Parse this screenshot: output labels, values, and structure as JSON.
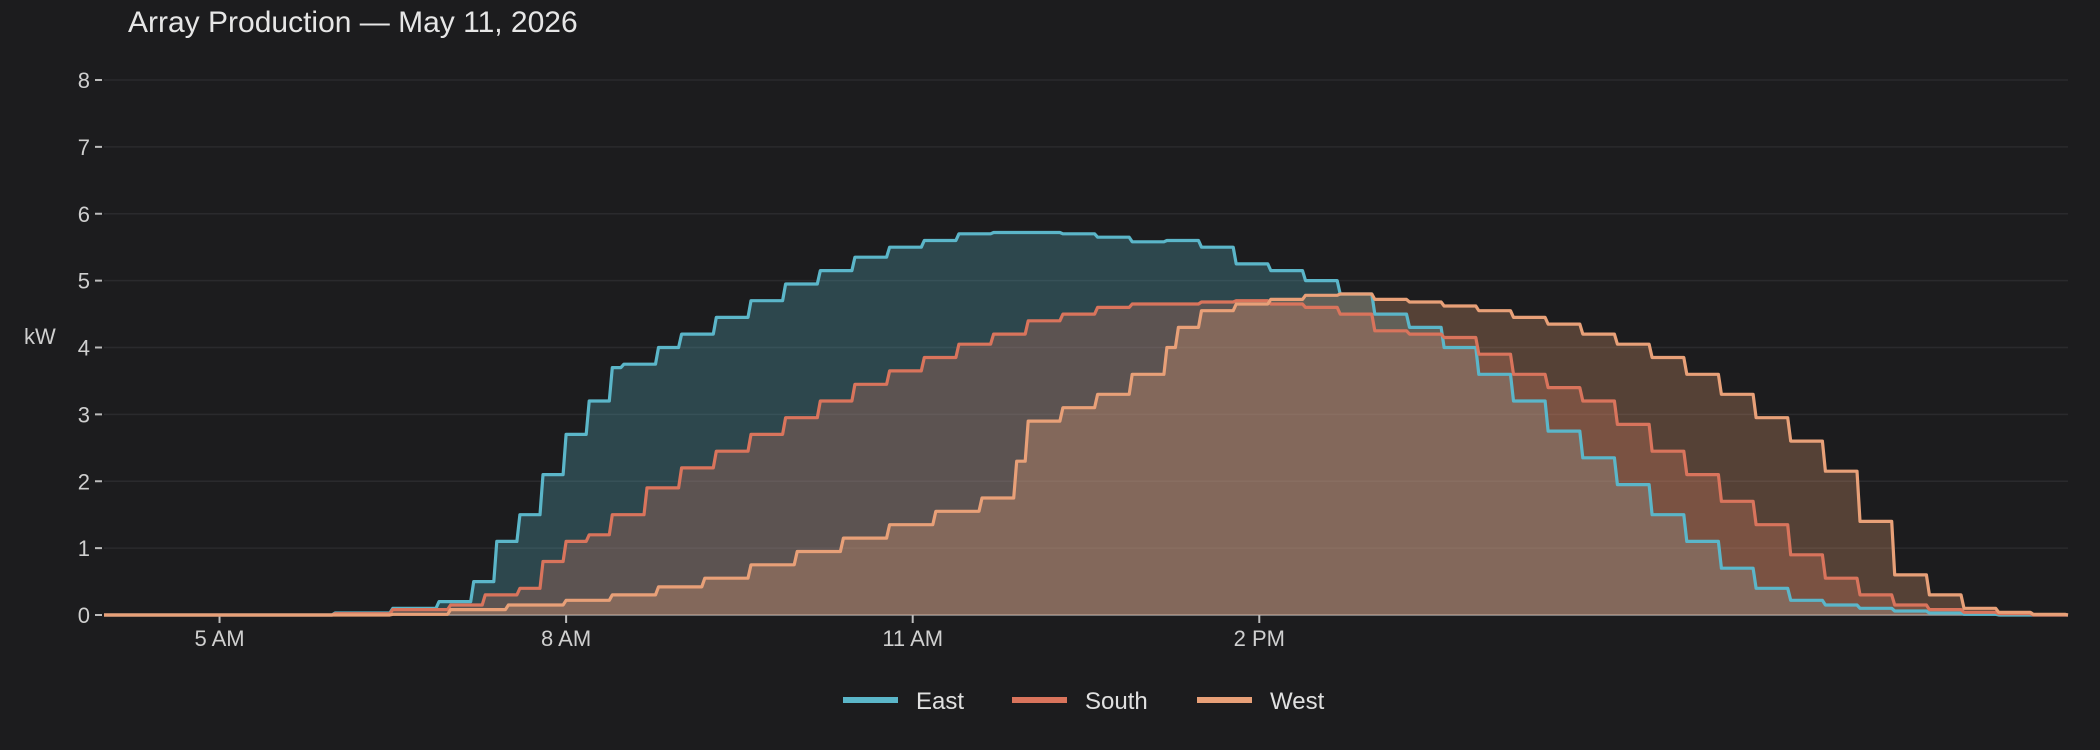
{
  "chart_data": {
    "type": "area",
    "title": "Array Production — May 11, 2026",
    "ylabel": "kW",
    "xlabel": "",
    "x_unit": "hour of day",
    "xlim": [
      4,
      21
    ],
    "ylim": [
      0,
      8
    ],
    "y_ticks": [
      0,
      1,
      2,
      3,
      4,
      5,
      6,
      7,
      8
    ],
    "x_ticks": [
      {
        "value": 5,
        "label": "5 AM"
      },
      {
        "value": 8,
        "label": "8 AM"
      },
      {
        "value": 11,
        "label": "11 AM"
      },
      {
        "value": 14,
        "label": "2 PM"
      }
    ],
    "grid": "horizontal",
    "legend_position": "bottom-center",
    "series": [
      {
        "name": "East",
        "color": "#5bb6c9",
        "fill": "#5bb6c9",
        "x": [
          4,
          6,
          6.5,
          6.9,
          7.2,
          7.4,
          7.6,
          7.8,
          8.0,
          8.2,
          8.4,
          8.5,
          8.8,
          9.0,
          9.3,
          9.6,
          9.9,
          10.2,
          10.5,
          10.8,
          11.1,
          11.4,
          11.7,
          12.0,
          12.3,
          12.6,
          12.9,
          13.2,
          13.5,
          13.8,
          14.1,
          14.4,
          14.7,
          15.0,
          15.3,
          15.6,
          15.9,
          16.2,
          16.5,
          16.8,
          17.1,
          17.4,
          17.7,
          18.0,
          18.3,
          18.6,
          18.9,
          19.2,
          19.5,
          19.8,
          20.1,
          20.4,
          20.7,
          21.0
        ],
        "values": [
          0,
          0.03,
          0.1,
          0.2,
          0.5,
          1.1,
          1.5,
          2.1,
          2.7,
          3.2,
          3.7,
          3.75,
          4.0,
          4.2,
          4.45,
          4.7,
          4.95,
          5.15,
          5.35,
          5.5,
          5.6,
          5.7,
          5.72,
          5.72,
          5.7,
          5.65,
          5.58,
          5.6,
          5.5,
          5.25,
          5.15,
          5.0,
          4.8,
          4.5,
          4.3,
          4.0,
          3.6,
          3.2,
          2.75,
          2.35,
          1.95,
          1.5,
          1.1,
          0.7,
          0.4,
          0.22,
          0.15,
          0.1,
          0.06,
          0.03,
          0.01,
          0.0,
          0.0,
          0.0
        ]
      },
      {
        "name": "South",
        "color": "#d9745c",
        "fill": "#d9745c",
        "x": [
          4,
          6,
          6.5,
          7.0,
          7.3,
          7.6,
          7.8,
          8.0,
          8.2,
          8.4,
          8.7,
          9.0,
          9.3,
          9.6,
          9.9,
          10.2,
          10.5,
          10.8,
          11.1,
          11.4,
          11.7,
          12.0,
          12.3,
          12.6,
          12.9,
          13.2,
          13.5,
          13.8,
          14.1,
          14.4,
          14.7,
          15.0,
          15.3,
          15.6,
          15.9,
          16.2,
          16.5,
          16.8,
          17.1,
          17.4,
          17.7,
          18.0,
          18.3,
          18.6,
          18.9,
          19.2,
          19.5,
          19.8,
          20.1,
          20.4,
          20.7,
          21.0
        ],
        "values": [
          0,
          0.02,
          0.08,
          0.15,
          0.3,
          0.4,
          0.8,
          1.1,
          1.2,
          1.5,
          1.9,
          2.2,
          2.45,
          2.7,
          2.95,
          3.2,
          3.45,
          3.65,
          3.85,
          4.05,
          4.2,
          4.4,
          4.5,
          4.6,
          4.65,
          4.65,
          4.68,
          4.7,
          4.65,
          4.6,
          4.5,
          4.25,
          4.2,
          4.15,
          3.9,
          3.6,
          3.4,
          3.2,
          2.85,
          2.45,
          2.1,
          1.7,
          1.35,
          0.9,
          0.55,
          0.3,
          0.15,
          0.08,
          0.04,
          0.02,
          0.0,
          0.0
        ]
      },
      {
        "name": "West",
        "color": "#e8a078",
        "fill": "#e8a078",
        "x": [
          4,
          6,
          6.5,
          7.0,
          7.5,
          8.0,
          8.4,
          8.8,
          9.2,
          9.6,
          10.0,
          10.4,
          10.8,
          11.2,
          11.6,
          11.9,
          12.0,
          12.3,
          12.6,
          12.9,
          13.2,
          13.3,
          13.5,
          13.8,
          14.1,
          14.4,
          14.7,
          15.0,
          15.3,
          15.6,
          15.9,
          16.2,
          16.5,
          16.8,
          17.1,
          17.4,
          17.7,
          18.0,
          18.3,
          18.6,
          18.9,
          19.2,
          19.5,
          19.8,
          20.1,
          20.4,
          20.7,
          21.0
        ],
        "values": [
          0,
          0.0,
          0.01,
          0.08,
          0.15,
          0.22,
          0.3,
          0.42,
          0.55,
          0.75,
          0.95,
          1.15,
          1.35,
          1.55,
          1.75,
          2.3,
          2.9,
          3.1,
          3.3,
          3.6,
          4.0,
          4.3,
          4.55,
          4.65,
          4.72,
          4.78,
          4.8,
          4.72,
          4.68,
          4.62,
          4.55,
          4.45,
          4.35,
          4.2,
          4.05,
          3.85,
          3.6,
          3.3,
          2.95,
          2.6,
          2.15,
          1.4,
          0.6,
          0.3,
          0.1,
          0.04,
          0.01,
          0.0
        ]
      }
    ]
  }
}
